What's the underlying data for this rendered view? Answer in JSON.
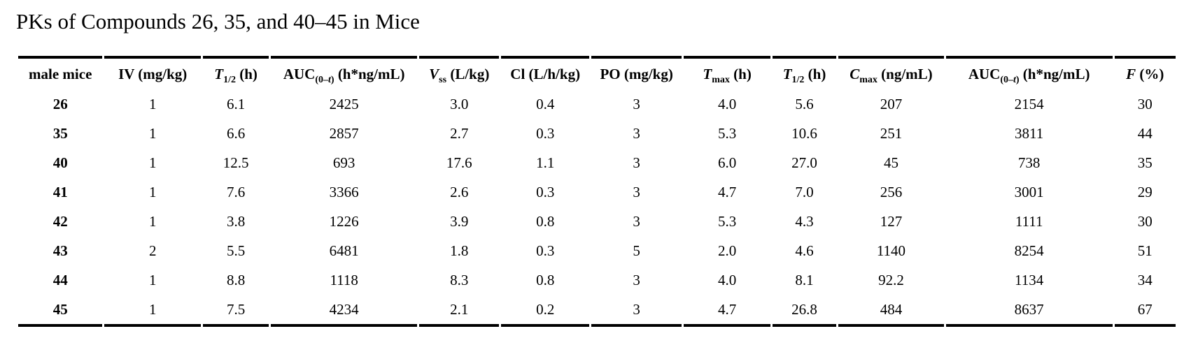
{
  "page": {
    "title": "PKs of Compounds 26, 35, and 40–45 in Mice"
  },
  "colors": {
    "text": "#000000",
    "background": "#ffffff",
    "rule": "#000000"
  },
  "table": {
    "columns": [
      {
        "id": "male-mice",
        "label": "male mice",
        "segments": [
          {
            "t": "male mice"
          }
        ]
      },
      {
        "id": "iv-dose",
        "label": "IV (mg/kg)",
        "segments": [
          {
            "t": "IV (mg/kg)"
          }
        ]
      },
      {
        "id": "iv-t-half",
        "label": "T1/2 (h)",
        "segments": [
          {
            "t": "T",
            "i": true
          },
          {
            "t": "1/2",
            "sub": true
          },
          {
            "t": " (h)"
          }
        ]
      },
      {
        "id": "iv-auc",
        "label": "AUC(0–t) (h*ng/mL)",
        "segments": [
          {
            "t": "AUC"
          },
          {
            "t": "(0–",
            "sub": true
          },
          {
            "t": "t",
            "sub": true,
            "i": true
          },
          {
            "t": ")",
            "sub": true
          },
          {
            "t": " (h*ng/mL)"
          }
        ]
      },
      {
        "id": "vss",
        "label": "Vss (L/kg)",
        "segments": [
          {
            "t": "V",
            "i": true
          },
          {
            "t": "ss",
            "sub": true
          },
          {
            "t": " (L/kg)"
          }
        ]
      },
      {
        "id": "cl",
        "label": "Cl (L/h/kg)",
        "segments": [
          {
            "t": "Cl (L/h/kg)"
          }
        ]
      },
      {
        "id": "po-dose",
        "label": "PO (mg/kg)",
        "segments": [
          {
            "t": "PO (mg/kg)"
          }
        ]
      },
      {
        "id": "tmax",
        "label": "Tmax (h)",
        "segments": [
          {
            "t": "T",
            "i": true
          },
          {
            "t": "max",
            "sub": true
          },
          {
            "t": " (h)"
          }
        ]
      },
      {
        "id": "po-t-half",
        "label": "T1/2 (h)",
        "segments": [
          {
            "t": "T",
            "i": true
          },
          {
            "t": "1/2",
            "sub": true
          },
          {
            "t": " (h)"
          }
        ]
      },
      {
        "id": "cmax",
        "label": "Cmax (ng/mL)",
        "segments": [
          {
            "t": "C",
            "i": true
          },
          {
            "t": "max",
            "sub": true
          },
          {
            "t": " (ng/mL)"
          }
        ]
      },
      {
        "id": "po-auc",
        "label": "AUC(0–t) (h*ng/mL)",
        "segments": [
          {
            "t": "AUC"
          },
          {
            "t": "(0–",
            "sub": true
          },
          {
            "t": "t",
            "sub": true,
            "i": true
          },
          {
            "t": ")",
            "sub": true
          },
          {
            "t": " (h*ng/mL)"
          }
        ]
      },
      {
        "id": "f-percent",
        "label": "F (%)",
        "segments": [
          {
            "t": "F",
            "i": true
          },
          {
            "t": " (%)"
          }
        ]
      }
    ],
    "rows": [
      [
        "26",
        "1",
        "6.1",
        "2425",
        "3.0",
        "0.4",
        "3",
        "4.0",
        "5.6",
        "207",
        "2154",
        "30"
      ],
      [
        "35",
        "1",
        "6.6",
        "2857",
        "2.7",
        "0.3",
        "3",
        "5.3",
        "10.6",
        "251",
        "3811",
        "44"
      ],
      [
        "40",
        "1",
        "12.5",
        "693",
        "17.6",
        "1.1",
        "3",
        "6.0",
        "27.0",
        "45",
        "738",
        "35"
      ],
      [
        "41",
        "1",
        "7.6",
        "3366",
        "2.6",
        "0.3",
        "3",
        "4.7",
        "7.0",
        "256",
        "3001",
        "29"
      ],
      [
        "42",
        "1",
        "3.8",
        "1226",
        "3.9",
        "0.8",
        "3",
        "5.3",
        "4.3",
        "127",
        "1111",
        "30"
      ],
      [
        "43",
        "2",
        "5.5",
        "6481",
        "1.8",
        "0.3",
        "5",
        "2.0",
        "4.6",
        "1140",
        "8254",
        "51"
      ],
      [
        "44",
        "1",
        "8.8",
        "1118",
        "8.3",
        "0.8",
        "3",
        "4.0",
        "8.1",
        "92.2",
        "1134",
        "34"
      ],
      [
        "45",
        "1",
        "7.5",
        "4234",
        "2.1",
        "0.2",
        "3",
        "4.7",
        "26.8",
        "484",
        "8637",
        "67"
      ]
    ]
  }
}
